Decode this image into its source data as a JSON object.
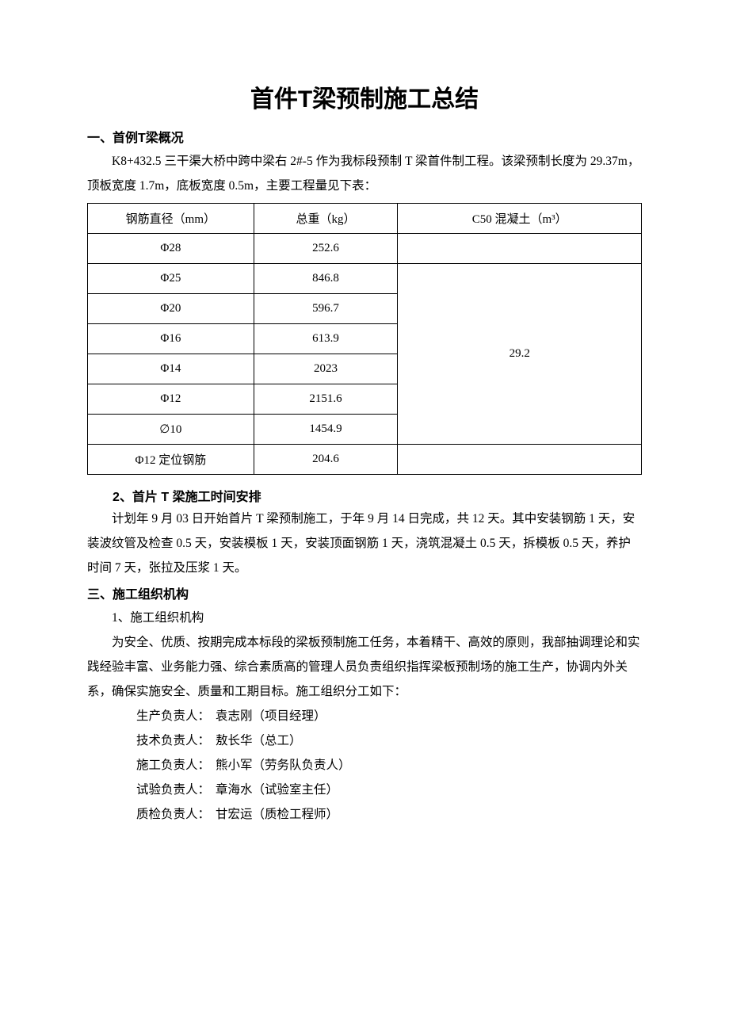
{
  "title": "首件T梁预制施工总结",
  "section1": {
    "heading": "一、首例T梁概况",
    "p1": "K8+432.5 三干渠大桥中跨中梁右 2#-5 作为我标段预制 T 梁首件制工程。该梁预制长度为 29.37m，顶板宽度 1.7m，底板宽度 0.5m，主要工程量见下表："
  },
  "table": {
    "headers": [
      "钢筋直径（mm）",
      "总重（kg）",
      "C50 混凝土（m³）"
    ],
    "rows": [
      {
        "d": "Φ28",
        "w": "252.6",
        "c": ""
      },
      {
        "d": "Φ25",
        "w": "846.8",
        "c_merge_start": true,
        "c": "29.2"
      },
      {
        "d": "Φ20",
        "w": "596.7"
      },
      {
        "d": "Φ16",
        "w": "613.9"
      },
      {
        "d": "Φ14",
        "w": "2023"
      },
      {
        "d": "Φ12",
        "w": "2151.6"
      },
      {
        "d": "∅10",
        "w": "1454.9"
      },
      {
        "d": "Φ12 定位钢筋",
        "w": "204.6",
        "c": ""
      }
    ],
    "merged_c_text": "29.2",
    "border_color": "#000000",
    "font_size": 15
  },
  "section2": {
    "heading": "2、首片 T 梁施工时间安排",
    "p1": "计划年 9 月 03 日开始首片 T 梁预制施工，于年 9 月 14 日完成，共 12 天。其中安装钢筋 1 天，安装波纹管及检查 0.5 天，安装模板 1 天，安装顶面钢筋 1 天，浇筑混凝土 0.5 天，拆模板 0.5 天，养护时间 7 天，张拉及压浆 1 天。"
  },
  "section3": {
    "heading": "三、施工组织机构",
    "sub1": "1、施工组织机构",
    "p1": "为安全、优质、按期完成本标段的梁板预制施工任务，本着精干、高效的原则，我部抽调理论和实践经验丰富、业务能力强、综合素质高的管理人员负责组织指挥梁板预制场的施工生产，协调内外关系，确保实施安全、质量和工期目标。施工组织分工如下：",
    "personnel": [
      {
        "role": "生产负责人：",
        "name": " 袁志刚（项目经理）"
      },
      {
        "role": "技术负责人：",
        "name": " 敖长华（总工）"
      },
      {
        "role": "施工负责人：",
        "name": " 熊小军（劳务队负责人）"
      },
      {
        "role": "试验负责人：",
        "name": " 章海水（试验室主任）"
      },
      {
        "role": "质检负责人：",
        "name": " 甘宏运（质检工程师）"
      }
    ]
  },
  "style": {
    "page_bg": "#ffffff",
    "text_color": "#000000",
    "title_fontsize": 30,
    "body_fontsize": 15.5,
    "line_height": 2.0
  }
}
